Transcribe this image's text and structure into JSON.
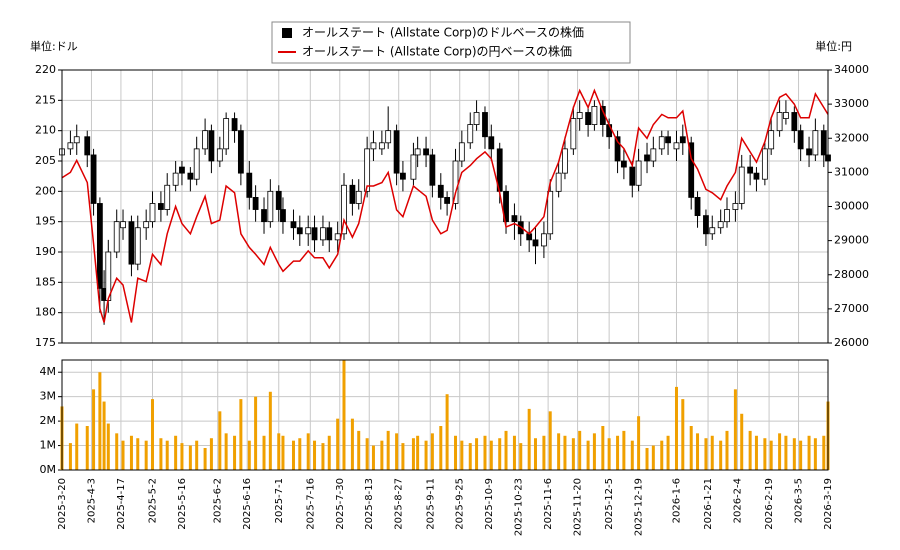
{
  "chart_data": [
    {
      "type": "candlestick",
      "y_unit_label": "単位:ドル",
      "y2_unit_label": "単位:円",
      "x": [
        "2025-3-20",
        "2025-3-24",
        "2025-3-27",
        "2025-4-1",
        "2025-4-4",
        "2025-4-7",
        "2025-4-9",
        "2025-4-11",
        "2025-4-15",
        "2025-4-18",
        "2025-4-22",
        "2025-4-25",
        "2025-4-29",
        "2025-5-2",
        "2025-5-6",
        "2025-5-9",
        "2025-5-13",
        "2025-5-16",
        "2025-5-20",
        "2025-5-23",
        "2025-5-27",
        "2025-5-30",
        "2025-6-3",
        "2025-6-6",
        "2025-6-10",
        "2025-6-13",
        "2025-6-17",
        "2025-6-20",
        "2025-6-24",
        "2025-6-27",
        "2025-7-1",
        "2025-7-3",
        "2025-7-8",
        "2025-7-11",
        "2025-7-15",
        "2025-7-18",
        "2025-7-22",
        "2025-7-25",
        "2025-7-29",
        "2025-8-1",
        "2025-8-5",
        "2025-8-8",
        "2025-8-12",
        "2025-8-15",
        "2025-8-19",
        "2025-8-22",
        "2025-8-26",
        "2025-8-29",
        "2025-9-3",
        "2025-9-5",
        "2025-9-9",
        "2025-9-12",
        "2025-9-16",
        "2025-9-19",
        "2025-9-23",
        "2025-9-26",
        "2025-9-30",
        "2025-10-3",
        "2025-10-7",
        "2025-10-10",
        "2025-10-14",
        "2025-10-17",
        "2025-10-21",
        "2025-10-24",
        "2025-10-28",
        "2025-10-31",
        "2025-11-4",
        "2025-11-7",
        "2025-11-11",
        "2025-11-14",
        "2025-11-18",
        "2025-11-21",
        "2025-11-25",
        "2025-11-28",
        "2025-12-2",
        "2025-12-5",
        "2025-12-9",
        "2025-12-12",
        "2025-12-16",
        "2025-12-19",
        "2025-12-23",
        "2025-12-26",
        "2025-12-30",
        "2026-1-2",
        "2026-1-6",
        "2026-1-9",
        "2026-1-13",
        "2026-1-16",
        "2026-1-20",
        "2026-1-23",
        "2026-1-27",
        "2026-1-30",
        "2026-2-3",
        "2026-2-6",
        "2026-2-10",
        "2026-2-13",
        "2026-2-17",
        "2026-2-20",
        "2026-2-24",
        "2026-2-27",
        "2026-3-3",
        "2026-3-6",
        "2026-3-10",
        "2026-3-13",
        "2026-3-17",
        "2026-3-19"
      ],
      "series": [
        {
          "name": "オールステート (Allstate Corp)のドルベースの株価",
          "color": "#000000",
          "open": [
            206,
            207,
            208,
            209,
            206,
            198,
            184,
            182,
            190,
            194,
            195,
            188,
            194,
            195,
            198,
            197,
            201,
            204,
            203,
            202,
            207,
            210,
            205,
            207,
            212,
            210,
            203,
            199,
            197,
            195,
            200,
            197,
            195,
            194,
            193,
            194,
            192,
            194,
            192,
            193,
            201,
            198,
            200,
            207,
            207,
            208,
            210,
            203,
            202,
            206,
            207,
            206,
            201,
            199,
            198,
            205,
            208,
            211,
            213,
            209,
            207,
            200,
            196,
            195,
            193,
            192,
            191,
            193,
            200,
            203,
            207,
            212,
            213,
            211,
            214,
            211,
            209,
            205,
            204,
            201,
            206,
            205,
            207,
            209,
            207,
            209,
            208,
            199,
            196,
            193,
            194,
            195,
            197,
            198,
            204,
            203,
            202,
            207,
            210,
            212,
            213,
            210,
            207,
            206,
            210,
            206
          ],
          "high": [
            209,
            210,
            211,
            210,
            207,
            199,
            187,
            192,
            197,
            197,
            196,
            196,
            197,
            200,
            200,
            203,
            205,
            205,
            204,
            209,
            212,
            211,
            209,
            213,
            213,
            211,
            205,
            201,
            199,
            202,
            201,
            199,
            197,
            196,
            196,
            196,
            196,
            195,
            195,
            203,
            202,
            202,
            209,
            210,
            210,
            214,
            211,
            205,
            208,
            209,
            209,
            207,
            203,
            200,
            207,
            210,
            213,
            215,
            214,
            211,
            208,
            201,
            198,
            196,
            195,
            194,
            195,
            202,
            205,
            209,
            214,
            215,
            214,
            215,
            215,
            212,
            210,
            207,
            205,
            207,
            208,
            209,
            210,
            210,
            210,
            211,
            209,
            200,
            197,
            196,
            197,
            199,
            200,
            206,
            206,
            204,
            208,
            212,
            215,
            215,
            214,
            211,
            209,
            212,
            211,
            207
          ],
          "low": [
            205,
            206,
            206,
            204,
            196,
            180,
            178,
            180,
            189,
            192,
            186,
            187,
            192,
            194,
            195,
            196,
            200,
            201,
            200,
            201,
            206,
            203,
            204,
            206,
            208,
            201,
            197,
            195,
            193,
            194,
            195,
            193,
            192,
            191,
            191,
            190,
            191,
            190,
            190,
            192,
            196,
            197,
            199,
            205,
            206,
            207,
            201,
            200,
            201,
            204,
            204,
            199,
            197,
            196,
            197,
            204,
            207,
            210,
            207,
            205,
            198,
            193,
            192,
            191,
            190,
            188,
            189,
            192,
            199,
            202,
            206,
            210,
            209,
            210,
            209,
            207,
            203,
            202,
            199,
            200,
            203,
            204,
            206,
            206,
            205,
            206,
            197,
            194,
            191,
            192,
            193,
            194,
            195,
            197,
            201,
            200,
            201,
            206,
            209,
            211,
            208,
            205,
            204,
            205,
            204,
            203
          ],
          "close": [
            207,
            208,
            209,
            206,
            198,
            184,
            182,
            190,
            195,
            195,
            188,
            194,
            195,
            198,
            197,
            201,
            203,
            203,
            202,
            207,
            210,
            205,
            207,
            212,
            210,
            203,
            199,
            197,
            195,
            200,
            197,
            195,
            194,
            193,
            194,
            192,
            194,
            192,
            193,
            201,
            198,
            200,
            207,
            208,
            208,
            210,
            203,
            202,
            206,
            207,
            206,
            201,
            199,
            198,
            205,
            208,
            211,
            213,
            209,
            207,
            200,
            195,
            195,
            193,
            192,
            191,
            193,
            200,
            203,
            207,
            212,
            213,
            211,
            214,
            211,
            209,
            205,
            204,
            201,
            205,
            205,
            207,
            209,
            208,
            208,
            208,
            199,
            196,
            193,
            194,
            195,
            197,
            198,
            204,
            203,
            202,
            207,
            210,
            213,
            213,
            210,
            207,
            206,
            210,
            206,
            205
          ]
        },
        {
          "name": "オールステート (Allstate Corp)の円ベースの株価",
          "color": "#dd0000",
          "axis": "y2",
          "values": [
            30840,
            31000,
            31350,
            30700,
            28900,
            27000,
            26600,
            27300,
            27900,
            27700,
            26600,
            27900,
            27800,
            28600,
            28300,
            29200,
            30000,
            29500,
            29200,
            29700,
            30300,
            29500,
            29600,
            30600,
            30400,
            29200,
            28800,
            28600,
            28300,
            28800,
            28300,
            28100,
            28400,
            28400,
            28700,
            28500,
            28500,
            28200,
            28600,
            29600,
            29100,
            29500,
            30600,
            30600,
            30700,
            31000,
            29900,
            29700,
            30600,
            30500,
            30300,
            29600,
            29200,
            29300,
            30400,
            31000,
            31200,
            31400,
            31600,
            31400,
            30400,
            29400,
            29500,
            29400,
            29200,
            29400,
            29700,
            30700,
            31300,
            32000,
            32900,
            33400,
            32900,
            33400,
            32800,
            32400,
            31900,
            31700,
            31200,
            32300,
            32000,
            32400,
            32700,
            32600,
            32600,
            32800,
            31400,
            31100,
            30500,
            30400,
            30200,
            30600,
            31000,
            32000,
            31600,
            31300,
            31900,
            32600,
            33200,
            33300,
            33000,
            32600,
            32600,
            33300,
            32900,
            32700
          ]
        }
      ],
      "ylim": [
        175,
        220
      ],
      "yticks": [
        175,
        180,
        185,
        190,
        195,
        200,
        205,
        210,
        215,
        220
      ],
      "y2lim": [
        26000,
        34000
      ],
      "y2ticks": [
        26000,
        27000,
        28000,
        29000,
        30000,
        31000,
        32000,
        33000,
        34000
      ],
      "grid": true,
      "legend": "top"
    },
    {
      "type": "bar",
      "color": "#f0a000",
      "values": [
        2600000,
        1100000,
        1900000,
        1800000,
        3300000,
        4000000,
        2800000,
        1900000,
        1500000,
        1200000,
        1400000,
        1300000,
        1200000,
        2900000,
        1300000,
        1200000,
        1400000,
        1100000,
        1000000,
        1200000,
        900000,
        1300000,
        2400000,
        1500000,
        1400000,
        2900000,
        1200000,
        3000000,
        1400000,
        3200000,
        1500000,
        1400000,
        1200000,
        1300000,
        1500000,
        1200000,
        1100000,
        1400000,
        2100000,
        4500000,
        2100000,
        1600000,
        1300000,
        1000000,
        1200000,
        1600000,
        1500000,
        1100000,
        1300000,
        1400000,
        1200000,
        1500000,
        1800000,
        3100000,
        1400000,
        1200000,
        1100000,
        1300000,
        1400000,
        1200000,
        1300000,
        1600000,
        1400000,
        1100000,
        2500000,
        1300000,
        1400000,
        2400000,
        1500000,
        1400000,
        1300000,
        1600000,
        1200000,
        1500000,
        1800000,
        1300000,
        1400000,
        1600000,
        1200000,
        2200000,
        900000,
        1000000,
        1200000,
        1400000,
        3400000,
        2900000,
        1800000,
        1500000,
        1300000,
        1400000,
        1200000,
        1600000,
        3300000,
        2300000,
        1600000,
        1400000,
        1300000,
        1200000,
        1500000,
        1400000,
        1300000,
        1200000,
        1400000,
        1300000,
        1400000,
        2800000
      ],
      "ylim": [
        0,
        4500000
      ],
      "yticks": [
        {
          "value": 0,
          "label": "0M"
        },
        {
          "value": 1000000,
          "label": "1M"
        },
        {
          "value": 2000000,
          "label": "2M"
        },
        {
          "value": 3000000,
          "label": "3M"
        },
        {
          "value": 4000000,
          "label": "4M"
        }
      ],
      "xlim": [
        "2025-3-20",
        "2026-3-19"
      ],
      "xticks": [
        "2025-3-20",
        "2025-4-3",
        "2025-4-17",
        "2025-5-2",
        "2025-5-16",
        "2025-6-2",
        "2025-6-16",
        "2025-7-1",
        "2025-7-16",
        "2025-7-30",
        "2025-8-13",
        "2025-8-27",
        "2025-9-11",
        "2025-9-25",
        "2025-10-9",
        "2025-10-23",
        "2025-11-6",
        "2025-11-20",
        "2025-12-5",
        "2025-12-19",
        "2026-1-6",
        "2026-1-21",
        "2026-2-4",
        "2026-2-19",
        "2026-3-5",
        "2026-3-19"
      ],
      "grid": true
    }
  ]
}
